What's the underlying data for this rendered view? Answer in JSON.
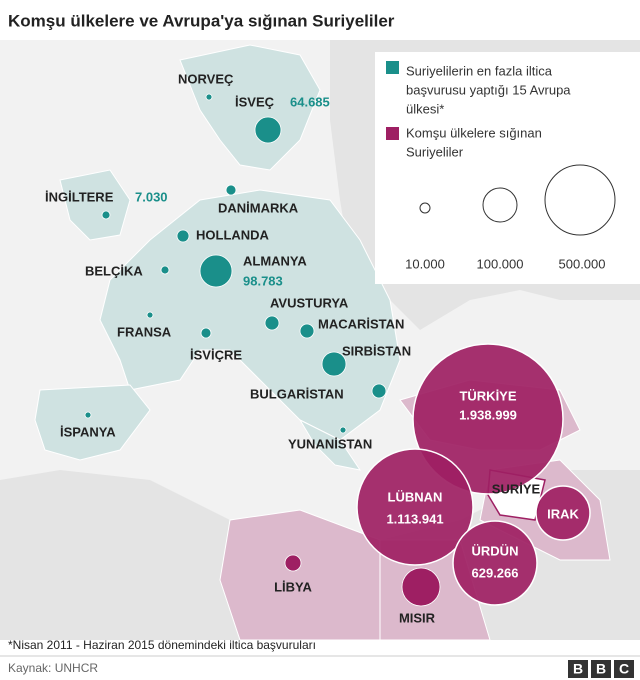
{
  "title": "Komşu ülkelere ve Avrupa'ya sığınan Suriyeliler",
  "legend": {
    "europe": [
      "Suriyelilerin en fazla iltica",
      "başvurusu yaptığı 15 Avrupa",
      "ülkesi*"
    ],
    "neighbours": [
      "Komşu ülkelere sığınan",
      "Suriyeliler"
    ],
    "sizes": [
      "10.000",
      "100.000",
      "500.000"
    ]
  },
  "countries": [
    {
      "name": "NORVEÇ"
    },
    {
      "name": "İSVEÇ",
      "value": "64.685"
    },
    {
      "name": "DANİMARKA"
    },
    {
      "name": "İNGİLTERE",
      "value": "7.030"
    },
    {
      "name": "HOLLANDA"
    },
    {
      "name": "BELÇİKA"
    },
    {
      "name": "ALMANYA",
      "value": "98.783"
    },
    {
      "name": "AVUSTURYA"
    },
    {
      "name": "MACARİSTAN"
    },
    {
      "name": "FRANSA"
    },
    {
      "name": "İSVİÇRE"
    },
    {
      "name": "SIRBİSTAN"
    },
    {
      "name": "BULGARİSTAN"
    },
    {
      "name": "İSPANYA"
    },
    {
      "name": "YUNANİSTAN"
    },
    {
      "name": "TÜRKİYE",
      "value": "1.938.999"
    },
    {
      "name": "LÜBNAN",
      "value": "1.113.941"
    },
    {
      "name": "SURİYE"
    },
    {
      "name": "IRAK"
    },
    {
      "name": "ÜRDÜN",
      "value": "629.266"
    },
    {
      "name": "MISIR"
    },
    {
      "name": "LİBYA"
    }
  ],
  "footnote": "*Nisan 2011 - Haziran 2015 dönemindeki iltica başvuruları",
  "source": "Kaynak: UNHCR",
  "logo": [
    "B",
    "B",
    "C"
  ]
}
